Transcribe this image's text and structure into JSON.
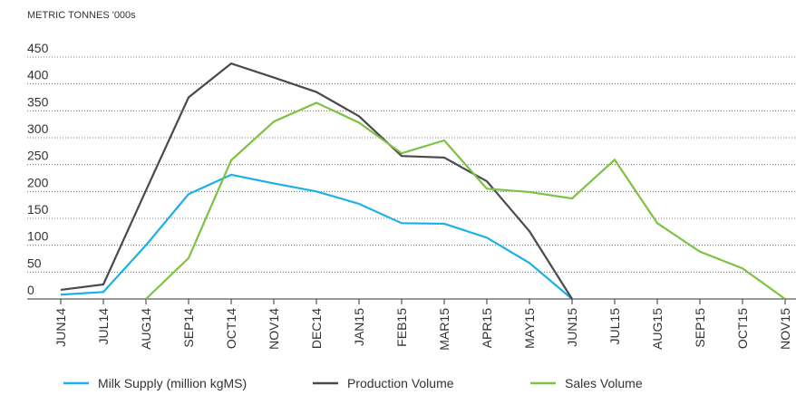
{
  "chart_data": {
    "type": "line",
    "title": "METRIC TONNES '000s",
    "categories": [
      "JUN14",
      "JUL14",
      "AUG14",
      "SEP14",
      "OCT14",
      "NOV14",
      "DEC14",
      "JAN15",
      "FEB15",
      "MAR15",
      "APR15",
      "MAY15",
      "JUN15",
      "JUL15",
      "AUG15",
      "SEP15",
      "OCT15",
      "NOV15"
    ],
    "series": [
      {
        "name": "Milk Supply (million kgMS)",
        "color": "#1ab0e8",
        "values": [
          8,
          13,
          100,
          195,
          231,
          215,
          200,
          177,
          141,
          140,
          114,
          67,
          0,
          null,
          null,
          null,
          null,
          null
        ]
      },
      {
        "name": "Production Volume",
        "color": "#4a4a4a",
        "values": [
          17,
          27,
          202,
          375,
          438,
          412,
          385,
          340,
          266,
          263,
          219,
          126,
          0,
          null,
          null,
          null,
          null,
          null
        ]
      },
      {
        "name": "Sales Volume",
        "color": "#7dc242",
        "values": [
          null,
          null,
          0,
          76,
          258,
          330,
          365,
          328,
          271,
          295,
          205,
          199,
          187,
          259,
          141,
          88,
          57,
          0
        ]
      }
    ],
    "ylim": [
      0,
      450
    ],
    "yticks": [
      0,
      50,
      100,
      150,
      200,
      250,
      300,
      350,
      400,
      450
    ],
    "grid": true,
    "legend": "bottom"
  }
}
